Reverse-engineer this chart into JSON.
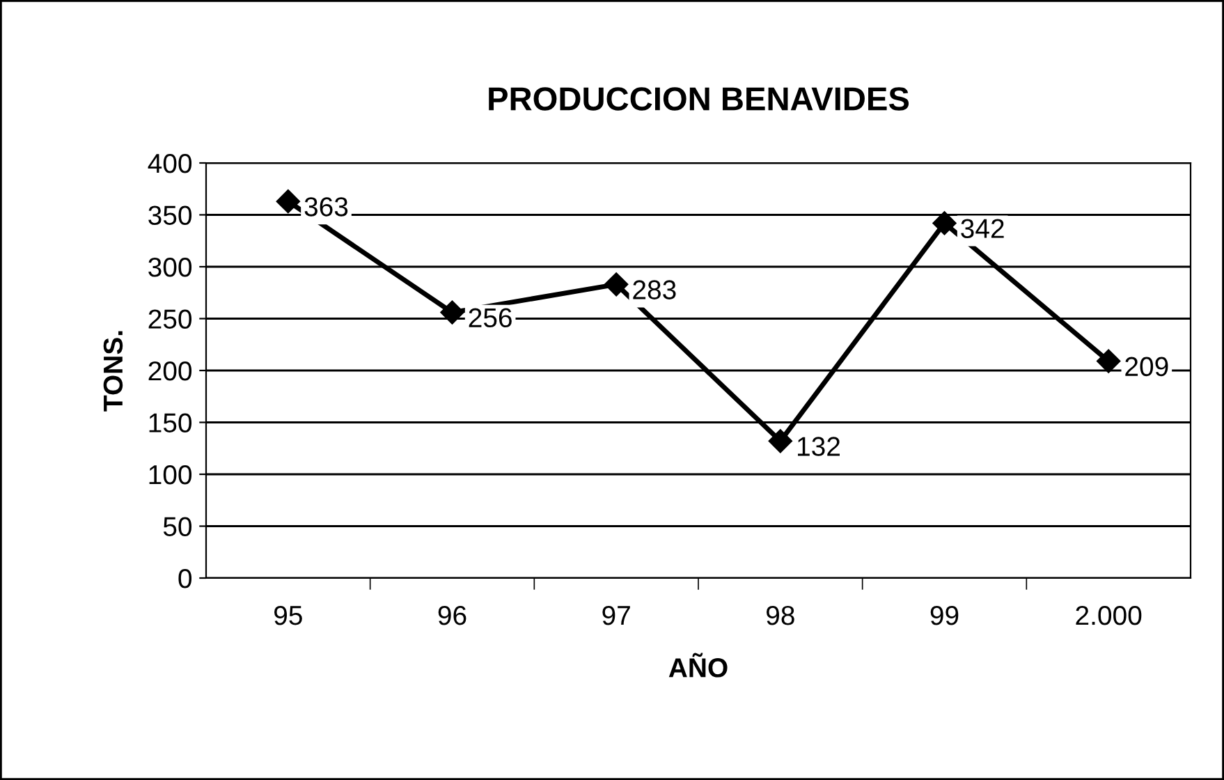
{
  "chart_data": {
    "type": "line",
    "title": "PRODUCCION BENAVIDES",
    "xlabel": "AÑO",
    "ylabel": "TONS.",
    "categories": [
      "95",
      "96",
      "97",
      "98",
      "99",
      "2.000"
    ],
    "series": [
      {
        "color": "#000000",
        "values": [
          363,
          256,
          283,
          132,
          342,
          209
        ]
      }
    ],
    "ylim": [
      0,
      400
    ],
    "yticks": [
      0,
      50,
      100,
      150,
      200,
      250,
      300,
      350,
      400
    ],
    "grid": "y",
    "marker": "diamond",
    "line_style": "solid",
    "data_labels": true,
    "legend": false
  }
}
